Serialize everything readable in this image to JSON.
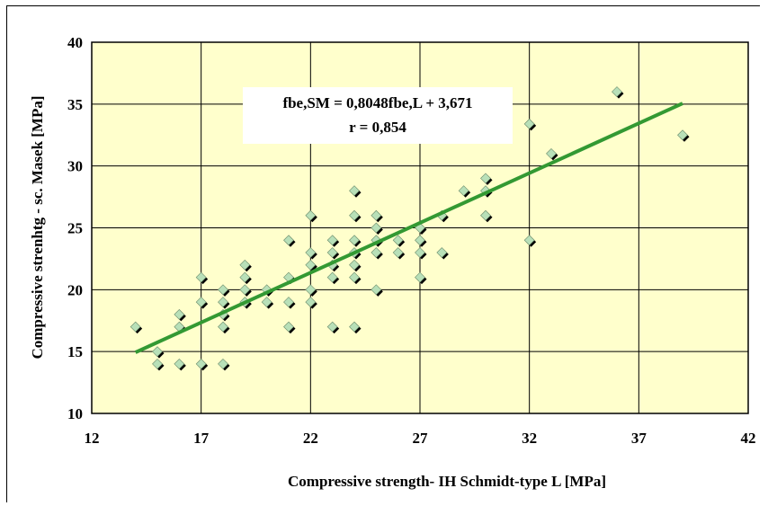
{
  "chart_data": {
    "type": "scatter",
    "xlabel": "Compressive strength- IH Schmidt-type L [MPa]",
    "ylabel": "Compressive strenhtg - sc. Masek [MPa]",
    "xlim": [
      12,
      42
    ],
    "ylim": [
      10,
      40
    ],
    "xticks": [
      "12",
      "17",
      "22",
      "27",
      "32",
      "37",
      "42"
    ],
    "yticks": [
      "10",
      "15",
      "20",
      "25",
      "30",
      "35",
      "40"
    ],
    "xtick_values": [
      12,
      17,
      22,
      27,
      32,
      37,
      42
    ],
    "ytick_values": [
      10,
      15,
      20,
      25,
      30,
      35,
      40
    ],
    "grid": true,
    "plot_background": "#ffffcc",
    "marker_fill": "#b8e0b8",
    "marker_shadow": "#000000",
    "trend_color": "#339933",
    "annotation": {
      "line1": "fbe,SM = 0,8048fbe,L + 3,671",
      "line2": "r = 0,854"
    },
    "trendline": {
      "slope": 0.8048,
      "intercept": 3.671,
      "x_range": [
        14,
        39
      ]
    },
    "points": [
      [
        14,
        17
      ],
      [
        15,
        15
      ],
      [
        15,
        14
      ],
      [
        16,
        18
      ],
      [
        16,
        17
      ],
      [
        16,
        14
      ],
      [
        17,
        21
      ],
      [
        17,
        19
      ],
      [
        17,
        14
      ],
      [
        18,
        20
      ],
      [
        18,
        19
      ],
      [
        18,
        18
      ],
      [
        18,
        17
      ],
      [
        18,
        14
      ],
      [
        19,
        22
      ],
      [
        19,
        21
      ],
      [
        19,
        20
      ],
      [
        19,
        19
      ],
      [
        20,
        20
      ],
      [
        20,
        19
      ],
      [
        21,
        24
      ],
      [
        21,
        21
      ],
      [
        21,
        19
      ],
      [
        21,
        17
      ],
      [
        22,
        26
      ],
      [
        22,
        23
      ],
      [
        22,
        22
      ],
      [
        22,
        20
      ],
      [
        22,
        19
      ],
      [
        23,
        24
      ],
      [
        23,
        23
      ],
      [
        23,
        22
      ],
      [
        23,
        21
      ],
      [
        23,
        17
      ],
      [
        24,
        28
      ],
      [
        24,
        26
      ],
      [
        24,
        24
      ],
      [
        24,
        23
      ],
      [
        24,
        22
      ],
      [
        24,
        21
      ],
      [
        24,
        17
      ],
      [
        25,
        26
      ],
      [
        25,
        25
      ],
      [
        25,
        24
      ],
      [
        25,
        23
      ],
      [
        25,
        20
      ],
      [
        26,
        24
      ],
      [
        26,
        23
      ],
      [
        27,
        25
      ],
      [
        27,
        24
      ],
      [
        27,
        23
      ],
      [
        27,
        21
      ],
      [
        28,
        26
      ],
      [
        28,
        23
      ],
      [
        29,
        28
      ],
      [
        30,
        29
      ],
      [
        30,
        28
      ],
      [
        30,
        26
      ],
      [
        32,
        33.4
      ],
      [
        32,
        24
      ],
      [
        33,
        31
      ],
      [
        36,
        36
      ],
      [
        39,
        32.5
      ]
    ]
  }
}
